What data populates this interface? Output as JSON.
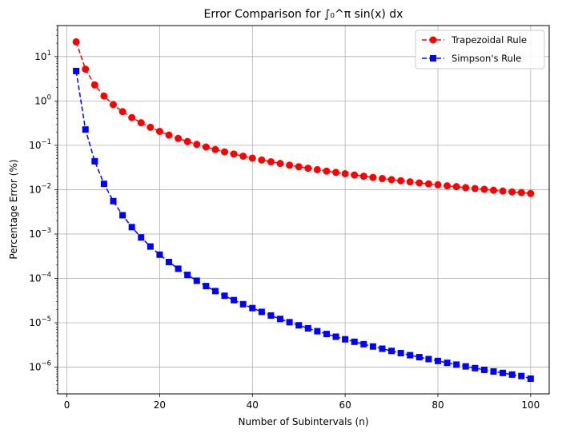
{
  "chart_data": {
    "type": "line",
    "title": "Error Comparison for ∫₀^π sin(x) dx",
    "xlabel": "Number of Subintervals (n)",
    "ylabel": "Percentage Error (%)",
    "yscale": "log",
    "xlim": [
      -2,
      104
    ],
    "ylim": [
      2.5e-07,
      50
    ],
    "x_ticks": [
      0,
      20,
      40,
      60,
      80,
      100
    ],
    "x_tick_labels": [
      "0",
      "20",
      "40",
      "60",
      "80",
      "100"
    ],
    "y_ticks": [
      1e-06,
      1e-05,
      0.0001,
      0.001,
      0.01,
      0.1,
      1,
      10
    ],
    "y_tick_mantissa": "10",
    "y_tick_exponents": [
      "−6",
      "−5",
      "−4",
      "−3",
      "−2",
      "−1",
      "0",
      "1"
    ],
    "grid": true,
    "legend_position": "top-right",
    "x": [
      2,
      4,
      6,
      8,
      10,
      12,
      14,
      16,
      18,
      20,
      22,
      24,
      26,
      28,
      30,
      32,
      34,
      36,
      38,
      40,
      42,
      44,
      46,
      48,
      50,
      52,
      54,
      56,
      58,
      60,
      62,
      64,
      66,
      68,
      70,
      72,
      74,
      76,
      78,
      80,
      82,
      84,
      86,
      88,
      90,
      92,
      94,
      96,
      98,
      100
    ],
    "series": [
      {
        "name": "Trapezoidal Rule",
        "color": "#ff0000",
        "marker": "circle",
        "linestyle": "dashed",
        "values": [
          21.46,
          5.194,
          2.291,
          1.288,
          0.8265,
          0.5737,
          0.4214,
          0.3226,
          0.2549,
          0.2057,
          0.1701,
          0.1429,
          0.1217,
          0.1049,
          0.0914,
          0.0803,
          0.0712,
          0.0635,
          0.057,
          0.0514,
          0.0466,
          0.0425,
          0.0389,
          0.0357,
          0.0329,
          0.0304,
          0.0282,
          0.0262,
          0.0245,
          0.0229,
          0.0214,
          0.0201,
          0.0189,
          0.0178,
          0.0168,
          0.0159,
          0.015,
          0.0142,
          0.0135,
          0.0129,
          0.0122,
          0.0117,
          0.0111,
          0.0106,
          0.0102,
          0.0097,
          0.0093,
          0.0089,
          0.0086,
          0.0082
        ]
      },
      {
        "name": "Simpson's Rule",
        "color": "#0000ff",
        "marker": "square",
        "linestyle": "dashed",
        "values": [
          4.72,
          0.2268,
          0.0437,
          0.01352,
          0.005519,
          0.002655,
          0.001431,
          0.000838,
          0.000523,
          0.000343,
          0.000234,
          0.000165,
          0.00012,
          8.86e-05,
          6.71e-05,
          5.18e-05,
          4.06e-05,
          3.24e-05,
          2.62e-05,
          2.14e-05,
          1.76e-05,
          1.46e-05,
          1.22e-05,
          1.03e-05,
          8.77e-06,
          7.5e-06,
          6.45e-06,
          5.58e-06,
          4.85e-06,
          4.24e-06,
          3.73e-06,
          3.29e-06,
          2.92e-06,
          2.6e-06,
          2.32e-06,
          2.07e-06,
          1.86e-06,
          1.68e-06,
          1.52e-06,
          1.38e-06,
          1.25e-06,
          1.14e-06,
          1.04e-06,
          9.5e-07,
          8.7e-07,
          8e-07,
          7.4e-07,
          6.8e-07,
          6.3e-07,
          5.5e-07
        ]
      }
    ]
  }
}
